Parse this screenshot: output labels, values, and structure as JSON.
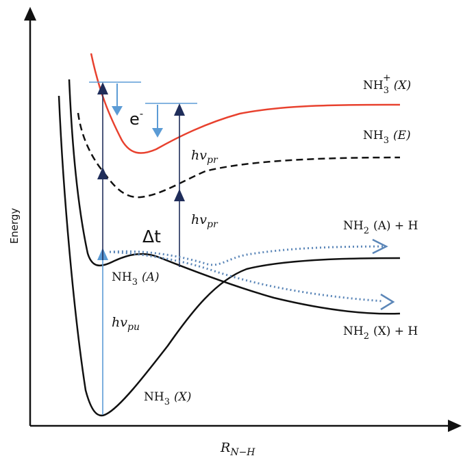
{
  "axes": {
    "y_label": "Energy",
    "x_label": "R",
    "x_label_sub": "N−H"
  },
  "states": {
    "ion": {
      "name": "NH",
      "sub": "3",
      "sup": "+",
      "suffix": "(X)",
      "color": "#e8412e"
    },
    "e_state": {
      "name": "NH",
      "sub": "3",
      "suffix": "(E)"
    },
    "a_state": {
      "name": "NH",
      "sub": "3",
      "suffix": "(A)"
    },
    "x_state": {
      "name": "NH",
      "sub": "3",
      "suffix": "(X)"
    },
    "diss_a": {
      "name": "NH",
      "sub": "2",
      "suffix": "(A) + H"
    },
    "diss_x": {
      "name": "NH",
      "sub": "2",
      "suffix": "(X) + H"
    }
  },
  "annotations": {
    "pump": {
      "h": "h",
      "nu": "v",
      "sub": "pu"
    },
    "probe_upper": {
      "h": "h",
      "nu": "v",
      "sub": "pr"
    },
    "probe_lower": {
      "h": "h",
      "nu": "v",
      "sub": "pr"
    },
    "delay": "Δt",
    "electron": {
      "e": "e",
      "sup": "-"
    }
  },
  "colors": {
    "black_curves": "#111111",
    "pump_arrow": "#5b9bd5",
    "probe_arrows": "#1f2d5a",
    "electron_arrows": "#5b9bd5",
    "wavepacket_dotted": "#5b86b8"
  }
}
